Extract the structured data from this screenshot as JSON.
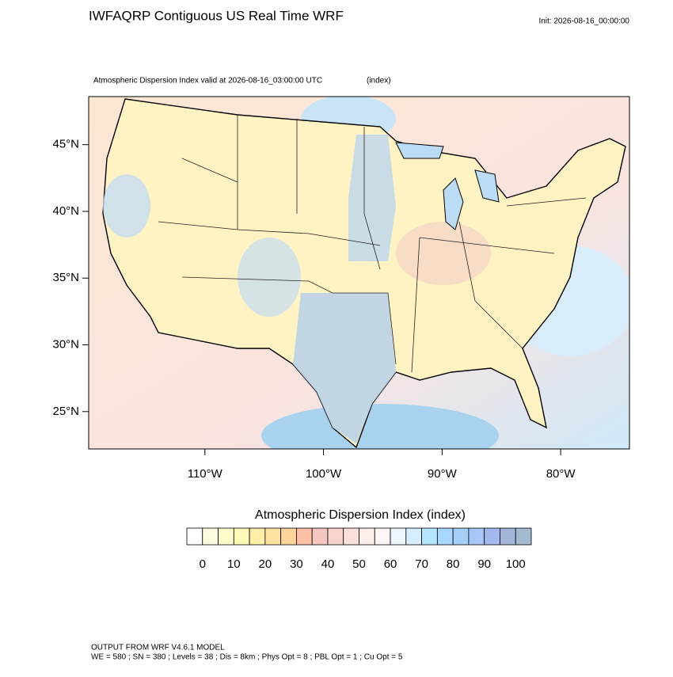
{
  "header": {
    "title": "IWFAQRP Contiguous US Real Time WRF",
    "init": "Init: 2026-08-16_00:00:00"
  },
  "chart_data": {
    "type": "map",
    "title": "Atmospheric Dispersion Index valid at 2026-08-16_03:00:00 UTC",
    "units": "(index)",
    "xlim": [
      -119.8,
      -74.2
    ],
    "ylim": [
      22.2,
      48.6
    ],
    "xticks": [
      {
        "value": -110,
        "label": "110°W"
      },
      {
        "value": -100,
        "label": "100°W"
      },
      {
        "value": -90,
        "label": "90°W"
      },
      {
        "value": -80,
        "label": "80°W"
      }
    ],
    "yticks": [
      {
        "value": 25,
        "label": "25°N"
      },
      {
        "value": 30,
        "label": "30°N"
      },
      {
        "value": 35,
        "label": "35°N"
      },
      {
        "value": 40,
        "label": "40°N"
      },
      {
        "value": 45,
        "label": "45°N"
      }
    ],
    "colorbar": {
      "title": "Atmospheric Dispersion Index  (index)",
      "levels": [
        0,
        5,
        10,
        15,
        20,
        25,
        30,
        35,
        40,
        45,
        50,
        55,
        60,
        65,
        70,
        75,
        80,
        85,
        90,
        95,
        100
      ],
      "ticks": [
        0,
        10,
        20,
        30,
        40,
        50,
        60,
        70,
        80,
        90,
        100
      ],
      "colors": [
        "#ffffff",
        "#fffde0",
        "#fffccc",
        "#fff9b8",
        "#ffeeaa",
        "#ffe2a0",
        "#ffd49a",
        "#fdc0a6",
        "#f5c7c0",
        "#f8d3cc",
        "#fbe0da",
        "#fdeeec",
        "#fff6f6",
        "#eef6ff",
        "#d6ecff",
        "#b5e6ff",
        "#a8d8ff",
        "#a6cff8",
        "#a8c6f6",
        "#a3b8ec",
        "#a4b5d8",
        "#a3bad0"
      ]
    }
  },
  "footer": {
    "line1": "OUTPUT FROM WRF V4.6.1 MODEL",
    "line2": "WE = 580 ; SN = 380 ; Levels = 38 ; Dis = 8km ; Phys Opt = 8 ; PBL Opt = 1 ; Cu Opt = 5"
  }
}
